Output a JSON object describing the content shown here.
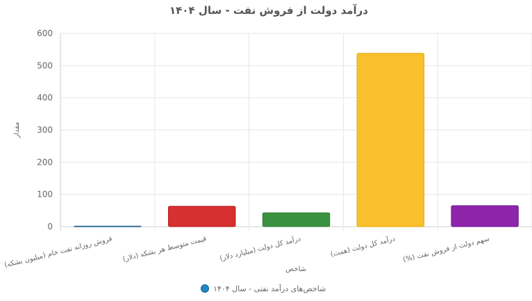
{
  "chart_data": {
    "type": "bar",
    "title": "درآمد دولت از فروش نفت - سال ۱۴۰۴",
    "xlabel": "شاخص",
    "ylabel": "مقدار",
    "ylim": [
      0,
      600
    ],
    "yticks": [
      0,
      100,
      200,
      300,
      400,
      500,
      600
    ],
    "grid": true,
    "legend_position": "bottom",
    "categories": [
      "فروش روزانه نفت خام (میلیون بشکه)",
      "قیمت متوسط هر بشکه (دلار)",
      "درآمد کل دولت (میلیارد دلار)",
      "درآمد کل دولت (همت)",
      "(%) سهم دولت از فروش نفت"
    ],
    "series": [
      {
        "name": "شاخص‌های درآمد نفتی - سال ۱۴۰۴",
        "values": [
          1.5,
          63,
          43,
          538,
          65
        ]
      }
    ],
    "colors": [
      "#4a90c8",
      "#d63031",
      "#3a913f",
      "#f9c02d",
      "#8e24aa"
    ],
    "border_colors": [
      "#2e6e9e",
      "#b71c1c",
      "#2e7d32",
      "#e6a800",
      "#6a1b9a"
    ],
    "legend_marker_color": "#1e88c8"
  }
}
